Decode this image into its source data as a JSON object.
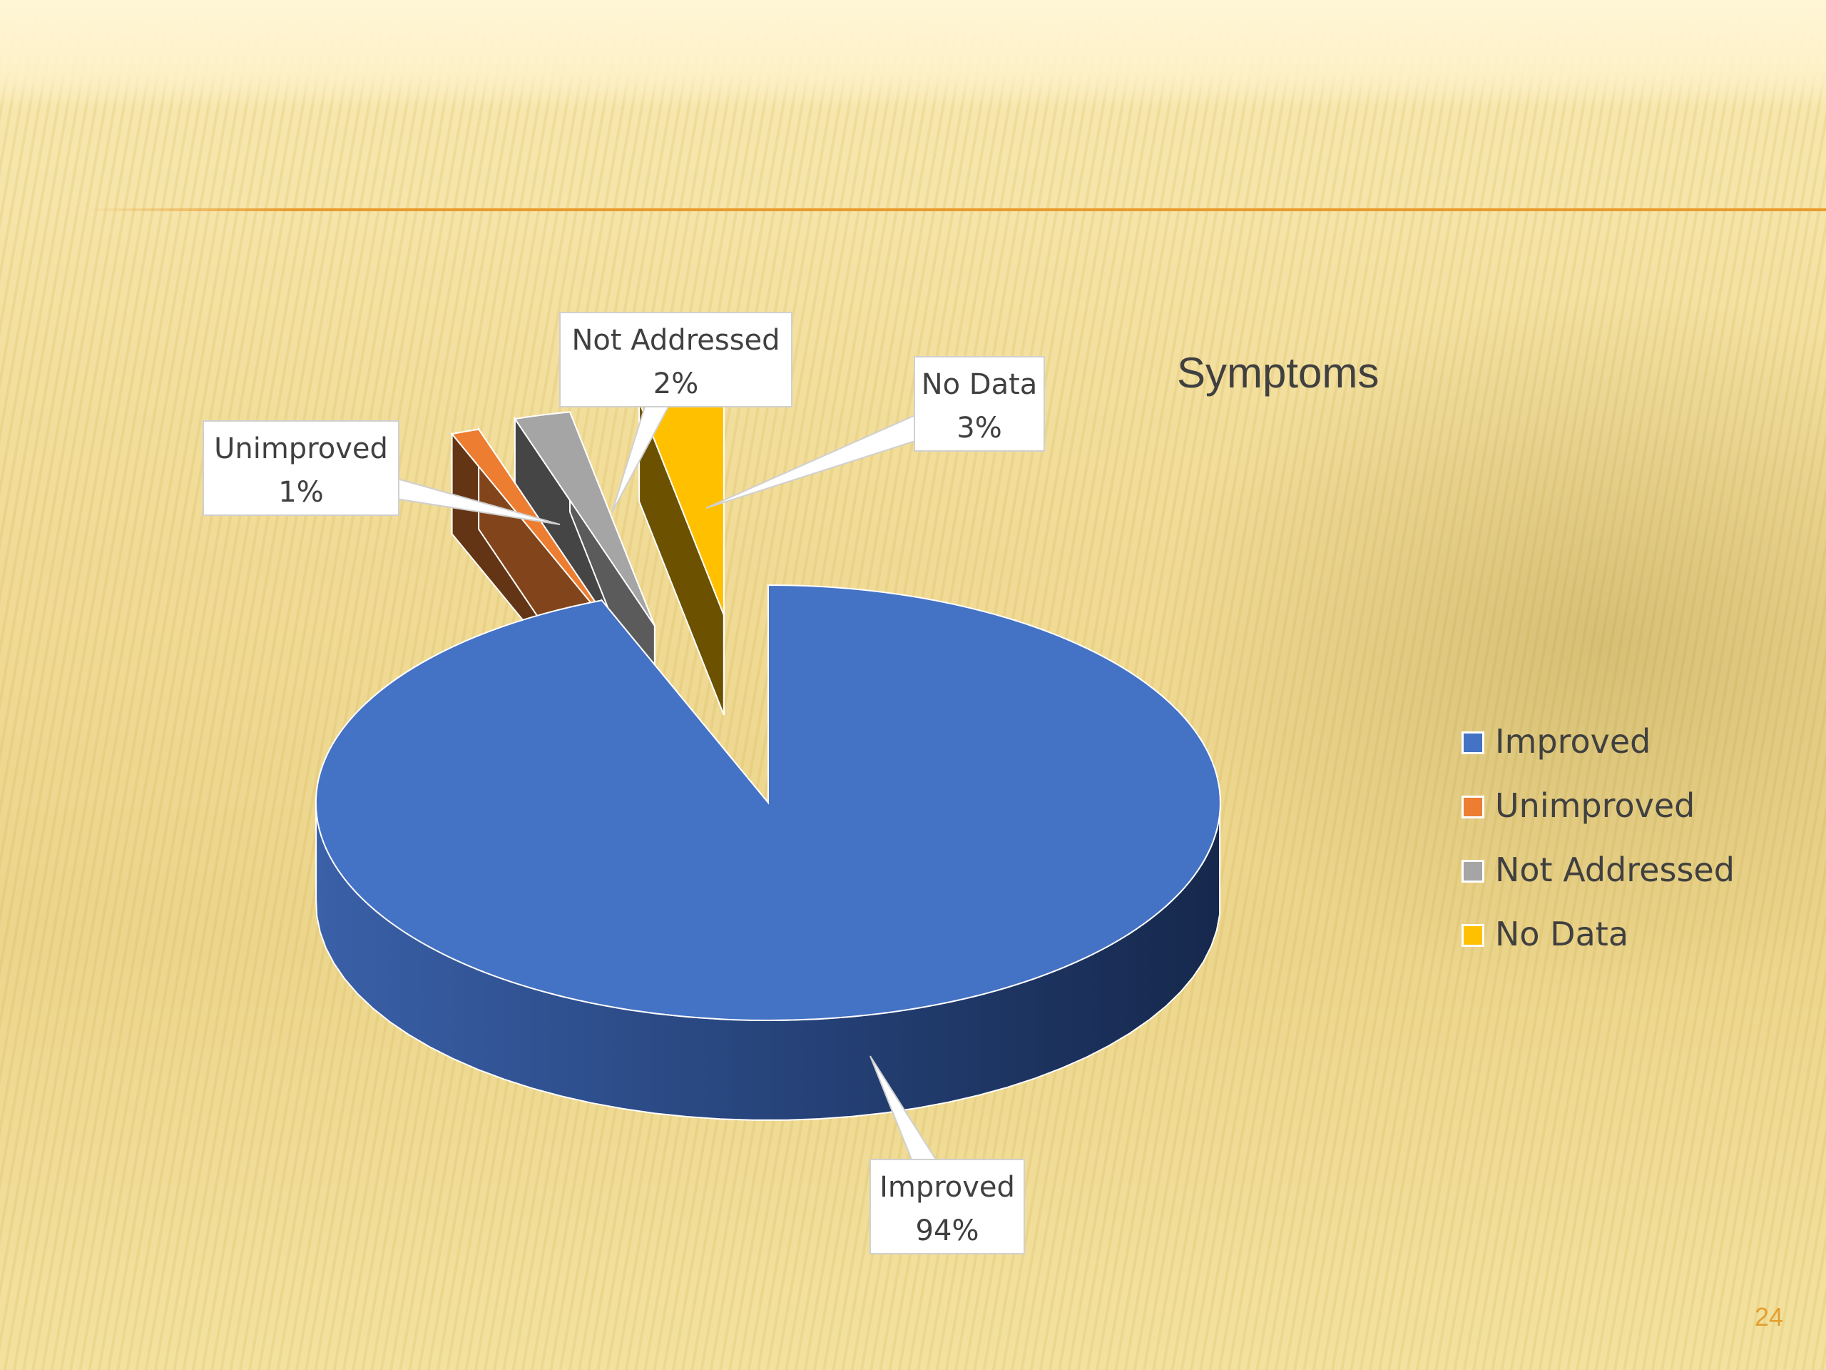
{
  "slide": {
    "page_number": "24"
  },
  "chart_data": {
    "type": "pie",
    "style": "3d-exploded",
    "title": "Symptoms",
    "categories": [
      "Improved",
      "Unimproved",
      "Not Addressed",
      "No Data"
    ],
    "values": [
      94,
      1,
      2,
      3
    ],
    "data_labels": [
      {
        "name": "Improved",
        "value": "94%"
      },
      {
        "name": "Unimproved",
        "value": "1%"
      },
      {
        "name": "Not Addressed",
        "value": "2%"
      },
      {
        "name": "No Data",
        "value": "3%"
      }
    ],
    "colors": [
      "#4472c4",
      "#ed7d31",
      "#a5a5a5",
      "#ffc000"
    ],
    "legend": {
      "position": "right",
      "items": [
        "Improved",
        "Unimproved",
        "Not Addressed",
        "No Data"
      ]
    }
  }
}
